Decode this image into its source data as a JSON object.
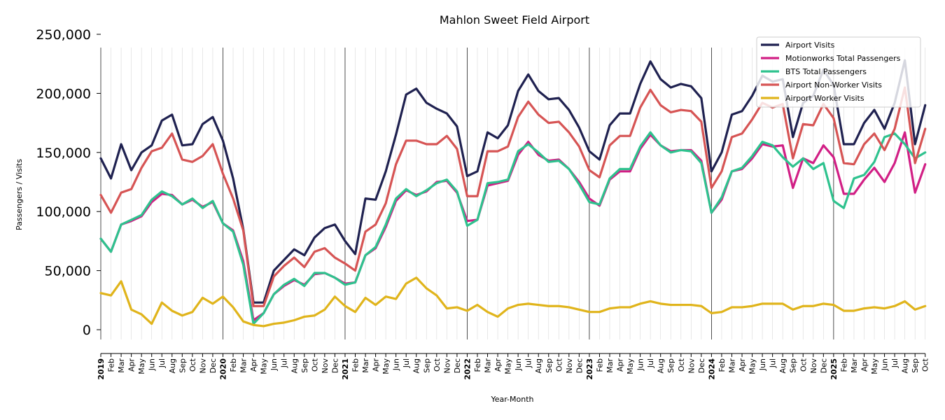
{
  "chart_data": {
    "type": "line",
    "title": "Mahlon Sweet Field Airport",
    "xlabel": "Year-Month",
    "ylabel": "Passengers / Visits",
    "ylim": [
      -8000,
      250000
    ],
    "yticks": [
      0,
      50000,
      100000,
      150000,
      200000,
      250000
    ],
    "ytick_labels": [
      "0",
      "50,000",
      "100,000",
      "150,000",
      "200,000",
      "250,000"
    ],
    "grid": "vertical monthly lines, darker at year boundaries",
    "legend_position": "top-right",
    "x": [
      "2019",
      "Feb",
      "Mar",
      "Apr",
      "May",
      "Jun",
      "Jul",
      "Aug",
      "Sep",
      "Oct",
      "Nov",
      "Dec",
      "2020",
      "Feb",
      "Mar",
      "Apr",
      "May",
      "Jun",
      "Jul",
      "Aug",
      "Sep",
      "Oct",
      "Nov",
      "Dec",
      "2021",
      "Feb",
      "Mar",
      "Apr",
      "May",
      "Jun",
      "Jul",
      "Aug",
      "Sep",
      "Oct",
      "Nov",
      "Dec",
      "2022",
      "Feb",
      "Mar",
      "Apr",
      "May",
      "Jun",
      "Jul",
      "Aug",
      "Sep",
      "Oct",
      "Nov",
      "Dec",
      "2023",
      "Feb",
      "Mar",
      "Apr",
      "May",
      "Jun",
      "Jul",
      "Aug",
      "Sep",
      "Oct",
      "Nov",
      "Dec",
      "2024",
      "Feb",
      "Mar",
      "Apr",
      "May",
      "Jun",
      "Jul",
      "Aug",
      "Sep",
      "Oct",
      "Nov",
      "Dec",
      "2025",
      "Feb",
      "Mar",
      "Apr",
      "May",
      "Jun",
      "Jul",
      "Aug",
      "Sep",
      "Oct"
    ],
    "year_labels": [
      "2019",
      "2020",
      "2021",
      "2022",
      "2023",
      "2024",
      "2025"
    ],
    "series": [
      {
        "name": "Airport Visits",
        "color": "#1f2150",
        "values": [
          145000,
          128000,
          157000,
          135000,
          150000,
          156000,
          177000,
          182000,
          156000,
          157000,
          174000,
          180000,
          160000,
          128000,
          85000,
          23000,
          23000,
          50000,
          59000,
          68000,
          63000,
          78000,
          86000,
          89000,
          75000,
          64000,
          111000,
          110000,
          134000,
          165000,
          199000,
          204000,
          192000,
          187000,
          183000,
          172000,
          130000,
          134000,
          167000,
          162000,
          173000,
          202000,
          216000,
          202000,
          195000,
          196000,
          186000,
          171000,
          151000,
          144000,
          173000,
          183000,
          183000,
          208000,
          227000,
          212000,
          205000,
          208000,
          206000,
          196000,
          134000,
          150000,
          182000,
          185000,
          198000,
          215000,
          210000,
          212000,
          163000,
          192000,
          198000,
          220000,
          207000,
          157000,
          157000,
          175000,
          186000,
          170000,
          192000,
          228000,
          157000,
          190000
        ]
      },
      {
        "name": "Motionworks Total Passengers",
        "color": "#d11f85",
        "values": [
          77000,
          66000,
          89000,
          92000,
          96000,
          108000,
          115000,
          114000,
          106000,
          110000,
          104000,
          108000,
          90000,
          84000,
          58000,
          8000,
          14000,
          30000,
          37000,
          42000,
          38000,
          47000,
          48000,
          44000,
          39000,
          40000,
          63000,
          69000,
          87000,
          109000,
          118000,
          114000,
          117000,
          125000,
          126000,
          116000,
          92000,
          93000,
          122000,
          124000,
          126000,
          148000,
          159000,
          148000,
          143000,
          144000,
          136000,
          125000,
          111000,
          105000,
          127000,
          134000,
          134000,
          153000,
          165000,
          156000,
          151000,
          152000,
          152000,
          143000,
          99000,
          110000,
          134000,
          136000,
          145000,
          157000,
          155000,
          156000,
          120000,
          145000,
          141000,
          156000,
          146000,
          115000,
          115000,
          127000,
          137000,
          125000,
          141000,
          167000,
          116000,
          140000
        ]
      },
      {
        "name": "BTS Total Passengers",
        "color": "#2ec28e",
        "values": [
          77000,
          66000,
          89000,
          93000,
          97000,
          110000,
          117000,
          113000,
          106000,
          111000,
          103000,
          109000,
          90000,
          83000,
          55000,
          5000,
          14000,
          30000,
          38000,
          43000,
          37000,
          48000,
          48000,
          44000,
          38000,
          40000,
          63000,
          70000,
          89000,
          111000,
          119000,
          113000,
          118000,
          124000,
          127000,
          117000,
          88000,
          93000,
          124000,
          125000,
          127000,
          151000,
          157000,
          150000,
          142000,
          143000,
          136000,
          123000,
          108000,
          106000,
          128000,
          136000,
          136000,
          155000,
          167000,
          156000,
          150000,
          152000,
          151000,
          141000,
          99000,
          112000,
          134000,
          137000,
          147000,
          159000,
          156000,
          146000,
          138000,
          145000,
          136000,
          141000,
          109000,
          103000,
          128000,
          131000,
          142000,
          163000,
          166000,
          157000,
          145000,
          150000
        ]
      },
      {
        "name": "Airport Non-Worker Visits",
        "color": "#d65454",
        "values": [
          114000,
          99000,
          116000,
          119000,
          137000,
          151000,
          154000,
          166000,
          144000,
          142000,
          147000,
          157000,
          132000,
          111000,
          84000,
          20000,
          20000,
          45000,
          54000,
          61000,
          53000,
          66000,
          69000,
          61000,
          56000,
          50000,
          83000,
          89000,
          107000,
          140000,
          160000,
          160000,
          157000,
          157000,
          164000,
          153000,
          113000,
          113000,
          151000,
          151000,
          155000,
          180000,
          193000,
          182000,
          175000,
          176000,
          167000,
          155000,
          135000,
          129000,
          156000,
          164000,
          164000,
          188000,
          203000,
          190000,
          184000,
          186000,
          185000,
          176000,
          120000,
          134000,
          163000,
          166000,
          178000,
          192000,
          188000,
          191000,
          145000,
          174000,
          173000,
          191000,
          179000,
          141000,
          140000,
          157000,
          166000,
          152000,
          170000,
          205000,
          141000,
          170000
        ]
      },
      {
        "name": "Airport Worker Visits",
        "color": "#e0b41b",
        "values": [
          31000,
          29000,
          41000,
          17000,
          13000,
          5000,
          23000,
          16000,
          12000,
          15000,
          27000,
          22000,
          28000,
          19000,
          7000,
          4000,
          3000,
          5000,
          6000,
          8000,
          11000,
          12000,
          17000,
          28000,
          20000,
          15000,
          27000,
          21000,
          28000,
          26000,
          39000,
          44000,
          35000,
          29000,
          18000,
          19000,
          16000,
          21000,
          15000,
          11000,
          18000,
          21000,
          22000,
          21000,
          20000,
          20000,
          19000,
          17000,
          15000,
          15000,
          18000,
          19000,
          19000,
          22000,
          24000,
          22000,
          21000,
          21000,
          21000,
          20000,
          14000,
          15000,
          19000,
          19000,
          20000,
          22000,
          22000,
          22000,
          17000,
          20000,
          20000,
          22000,
          21000,
          16000,
          16000,
          18000,
          19000,
          18000,
          20000,
          24000,
          17000,
          20000
        ]
      }
    ]
  }
}
